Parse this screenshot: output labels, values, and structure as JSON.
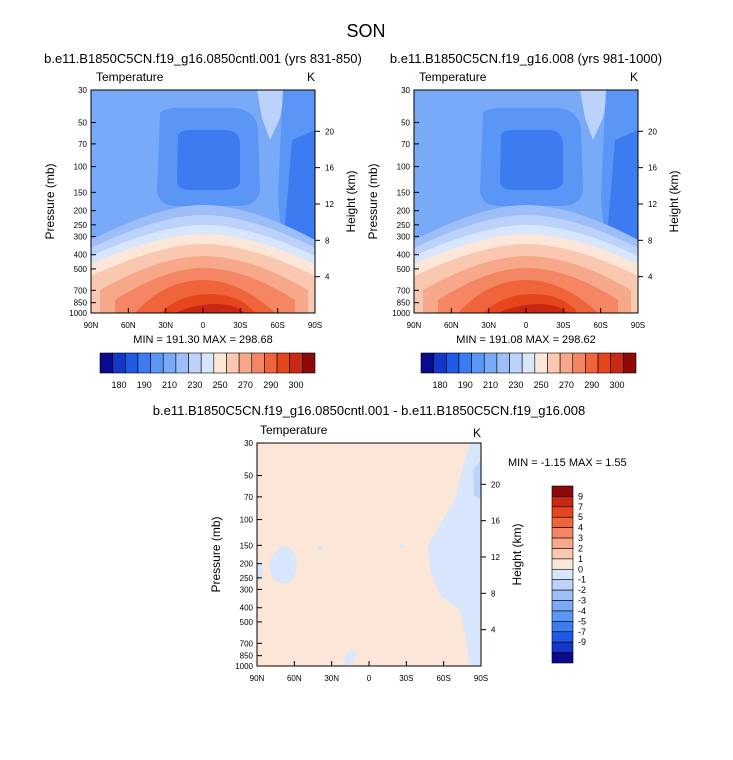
{
  "page_title": "SON",
  "chart_data": [
    {
      "type": "heatmap",
      "title": "b.e11.B1850C5CN.f19_g16.0850cntl.001 (yrs 831-850)",
      "left_label": "Temperature",
      "right_label": "K",
      "ylabel": "Pressure (mb)",
      "ylabel_right": "Height (km)",
      "x_ticks": [
        "90N",
        "60N",
        "30N",
        "0",
        "30S",
        "60S",
        "90S"
      ],
      "y_ticks": [
        "30",
        "50",
        "70",
        "100",
        "150",
        "200",
        "250",
        "300",
        "400",
        "500",
        "700",
        "850",
        "1000"
      ],
      "height_ticks": [
        "20",
        "16",
        "12",
        "8",
        "4"
      ],
      "stats": "MIN = 191.30  MAX = 298.68",
      "min": 191.3,
      "max": 298.68,
      "colorbar_labels": [
        "180",
        "190",
        "210",
        "230",
        "250",
        "270",
        "290",
        "300"
      ]
    },
    {
      "type": "heatmap",
      "title": "b.e11.B1850C5CN.f19_g16.008 (yrs 981-1000)",
      "left_label": "Temperature",
      "right_label": "K",
      "ylabel": "Pressure (mb)",
      "ylabel_right": "Height (km)",
      "x_ticks": [
        "90N",
        "60N",
        "30N",
        "0",
        "30S",
        "60S",
        "90S"
      ],
      "y_ticks": [
        "30",
        "50",
        "70",
        "100",
        "150",
        "200",
        "250",
        "300",
        "400",
        "500",
        "700",
        "850",
        "1000"
      ],
      "height_ticks": [
        "20",
        "16",
        "12",
        "8",
        "4"
      ],
      "stats": "MIN = 191.08  MAX = 298.62",
      "min": 191.08,
      "max": 298.62,
      "colorbar_labels": [
        "180",
        "190",
        "210",
        "230",
        "250",
        "270",
        "290",
        "300"
      ]
    },
    {
      "type": "heatmap",
      "title": "b.e11.B1850C5CN.f19_g16.0850cntl.001 - b.e11.B1850C5CN.f19_g16.008",
      "left_label": "Temperature",
      "right_label": "K",
      "ylabel": "Pressure (mb)",
      "ylabel_right": "Height (km)",
      "x_ticks": [
        "90N",
        "60N",
        "30N",
        "0",
        "30S",
        "60S",
        "90S"
      ],
      "y_ticks": [
        "30",
        "50",
        "70",
        "100",
        "150",
        "200",
        "250",
        "300",
        "400",
        "500",
        "700",
        "850",
        "1000"
      ],
      "height_ticks": [
        "20",
        "16",
        "12",
        "8",
        "4"
      ],
      "stats": "MIN = -1.15  MAX =  1.55",
      "min": -1.15,
      "max": 1.55,
      "colorbar_labels": [
        "9",
        "7",
        "5",
        "4",
        "3",
        "2",
        "1",
        "0",
        "-1",
        "-2",
        "-3",
        "-4",
        "-5",
        "-7",
        "-9"
      ]
    }
  ],
  "colors": {
    "abs_scale": [
      "#0a0a8c",
      "#1437c8",
      "#1e5ae6",
      "#3c7cf0",
      "#5a96f5",
      "#78aaf7",
      "#9ebef8",
      "#bcd2fa",
      "#d7e6fc",
      "#fce6d7",
      "#fac8b0",
      "#f7a88a",
      "#f58664",
      "#f0643c",
      "#e6461e",
      "#c82814",
      "#8c0a0a"
    ],
    "diff_scale": [
      "#8c0a0a",
      "#c82814",
      "#e6461e",
      "#f0643c",
      "#f58664",
      "#f7a88a",
      "#fac8b0",
      "#fce6d7",
      "#d7e6fc",
      "#bcd2fa",
      "#9ebef8",
      "#78aaf7",
      "#5a96f5",
      "#3c7cf0",
      "#1e5ae6",
      "#1437c8",
      "#0a0a8c"
    ]
  }
}
